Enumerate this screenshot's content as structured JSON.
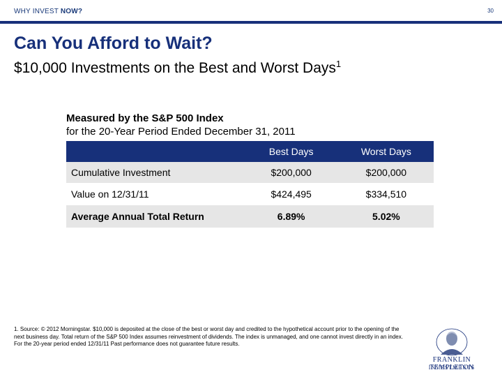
{
  "header": {
    "section_label_part1": "WHY INVEST ",
    "section_label_part2": "NOW?",
    "page_number": "30"
  },
  "title": "Can You Afford to Wait?",
  "subtitle": "$10,000 Investments on the Best and Worst Days",
  "subtitle_footnote_mark": "1",
  "caption": {
    "line1": "Measured by the S&P 500 Index",
    "line2": "for the 20-Year Period Ended December 31, 2011"
  },
  "table": {
    "columns": [
      "Best Days",
      "Worst Days"
    ],
    "rows": [
      {
        "label": "Cumulative Investment",
        "best": "$200,000",
        "worst": "$200,000"
      },
      {
        "label": "Value on 12/31/11",
        "best": "$424,495",
        "worst": "$334,510"
      },
      {
        "label": "Average Annual Total Return",
        "best": "6.89%",
        "worst": "5.02%"
      }
    ]
  },
  "footnote": "1. Source: © 2012 Morningstar. $10,000 is deposited at the close of the best or worst day and credited to the hypothetical account prior to the opening of the next business day. Total return of the S&P 500 Index assumes reinvestment of dividends. The index is unmanaged, and one cannot invest directly in an index. For the 20-year period ended 12/31/11 Past performance does not guarantee future results.",
  "logo": {
    "line1": "FRANKLIN TEMPLETON",
    "line2": "INVESTMENTS",
    "color": "#17307a"
  }
}
